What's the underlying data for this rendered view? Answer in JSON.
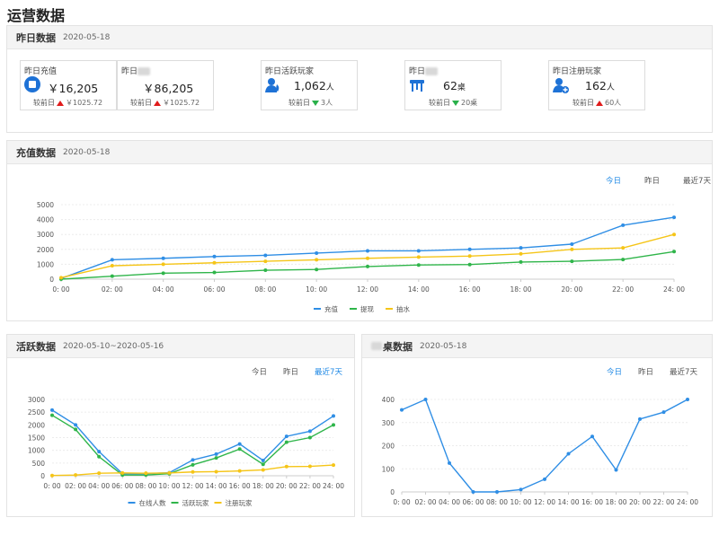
{
  "page": {
    "title": "运营数据"
  },
  "yesterday": {
    "title": "昨日数据",
    "date": "2020-05-18",
    "compare_prefix": "较前日",
    "cards": [
      {
        "label": "昨日充值",
        "value": "￥16,205",
        "compare_dir": "up",
        "compare_value": "￥1025.72",
        "icon": "recharge-icon"
      },
      {
        "label": "昨日",
        "value": "￥86,205",
        "compare_dir": "up",
        "compare_value": "￥1025.72",
        "icon": ""
      },
      {
        "label": "昨日活跃玩家",
        "value": "1,062",
        "unit": "人",
        "compare_dir": "down",
        "compare_value": "3人",
        "icon": "active-player-icon"
      },
      {
        "label": "昨日",
        "value": "62",
        "unit": "桌",
        "compare_dir": "down",
        "compare_value": "20桌",
        "icon": "table-icon"
      },
      {
        "label": "昨日注册玩家",
        "value": "162",
        "unit": "人",
        "compare_dir": "up",
        "compare_value": "60人",
        "icon": "register-player-icon"
      }
    ]
  },
  "recharge": {
    "title": "充值数据",
    "date": "2020-05-18",
    "tabs": [
      "今日",
      "昨日",
      "最近7天"
    ],
    "active_tab": 0
  },
  "active": {
    "title": "活跃数据",
    "date": "2020-05-10~2020-05-16",
    "tabs": [
      "今日",
      "昨日",
      "最近7天"
    ],
    "active_tab": 2
  },
  "tables": {
    "title": "桌数据",
    "date": "2020-05-18",
    "tabs": [
      "今日",
      "昨日",
      "最近7天"
    ],
    "active_tab": 0
  },
  "chart_data": [
    {
      "type": "line",
      "categories": [
        "0: 00",
        "02: 00",
        "04: 00",
        "06: 00",
        "08: 00",
        "10: 00",
        "12: 00",
        "14: 00",
        "16: 00",
        "18: 00",
        "20: 00",
        "22: 00",
        "24: 00"
      ],
      "yticks": [
        0,
        1000,
        2000,
        3000,
        4000,
        5000
      ],
      "ylim": [
        0,
        5000
      ],
      "grid": true,
      "legend": "bottom",
      "series": [
        {
          "name": "充值",
          "color": "#2f8ee5",
          "values": [
            50,
            1300,
            1400,
            1520,
            1600,
            1750,
            1900,
            1900,
            2000,
            2100,
            2350,
            3620,
            4150
          ]
        },
        {
          "name": "提现",
          "color": "#2fb54a",
          "values": [
            0,
            200,
            400,
            450,
            600,
            650,
            850,
            950,
            980,
            1150,
            1200,
            1320,
            1850
          ]
        },
        {
          "name": "抽水",
          "color": "#f5c518",
          "values": [
            100,
            900,
            1000,
            1100,
            1200,
            1300,
            1400,
            1480,
            1550,
            1700,
            2000,
            2100,
            3000
          ]
        }
      ]
    },
    {
      "type": "line",
      "categories": [
        "0: 00",
        "02: 00",
        "04: 00",
        "06: 00",
        "08: 00",
        "10: 00",
        "12: 00",
        "14: 00",
        "16: 00",
        "18: 00",
        "20: 00",
        "22: 00",
        "24: 00"
      ],
      "yticks": [
        0,
        500,
        1000,
        1500,
        2000,
        2500,
        3000
      ],
      "ylim": [
        0,
        3000
      ],
      "grid": true,
      "legend": "bottom",
      "series": [
        {
          "name": "在线人数",
          "color": "#2f8ee5",
          "values": [
            2580,
            2000,
            950,
            80,
            80,
            120,
            620,
            850,
            1250,
            600,
            1550,
            1750,
            2350
          ]
        },
        {
          "name": "活跃玩家",
          "color": "#2fb54a",
          "values": [
            2380,
            1820,
            750,
            30,
            30,
            80,
            430,
            700,
            1050,
            450,
            1320,
            1500,
            2000
          ]
        },
        {
          "name": "注册玩家",
          "color": "#f5c518",
          "values": [
            10,
            30,
            100,
            110,
            100,
            110,
            150,
            160,
            190,
            230,
            360,
            370,
            420
          ]
        }
      ]
    },
    {
      "type": "line",
      "categories": [
        "0: 00",
        "02: 00",
        "04: 00",
        "06: 00",
        "08: 00",
        "10: 00",
        "12: 00",
        "14: 00",
        "16: 00",
        "18: 00",
        "20: 00",
        "22: 00",
        "24: 00"
      ],
      "yticks": [
        0,
        100,
        200,
        300,
        400
      ],
      "ylim": [
        0,
        400
      ],
      "grid": true,
      "legend": "none",
      "series": [
        {
          "name": "",
          "color": "#2f8ee5",
          "values": [
            355,
            400,
            125,
            0,
            0,
            10,
            55,
            165,
            240,
            95,
            315,
            345,
            400
          ]
        }
      ]
    }
  ]
}
